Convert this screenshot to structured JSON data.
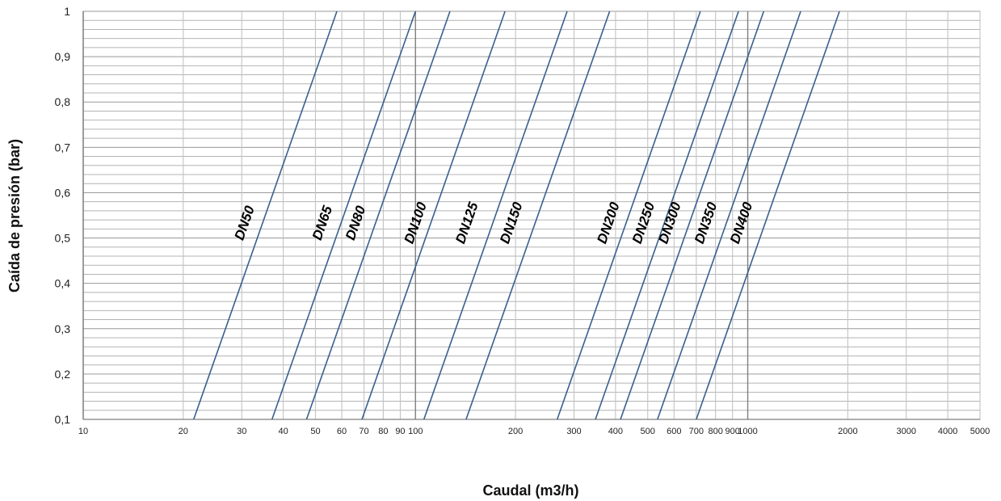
{
  "chart_data": {
    "type": "line",
    "title": "",
    "xlabel": "Caudal (m3/h)",
    "ylabel": "Caída de presión (bar)",
    "x_scale": "log",
    "xlim": [
      10,
      5000
    ],
    "ylim": [
      0.1,
      1
    ],
    "x_ticks": [
      10,
      20,
      30,
      40,
      50,
      60,
      70,
      80,
      90,
      100,
      200,
      300,
      400,
      500,
      600,
      700,
      800,
      900,
      1000,
      2000,
      3000,
      4000,
      5000
    ],
    "x_tick_labels": [
      "10",
      "20",
      "30",
      "40",
      "50",
      "60",
      "70",
      "80",
      "90",
      "100",
      "200",
      "300",
      "400",
      "500",
      "600",
      "700",
      "800",
      "900",
      "1000",
      "2000",
      "3000",
      "4000",
      "5000"
    ],
    "y_ticks": [
      0.1,
      0.2,
      0.3,
      0.4,
      0.5,
      0.6,
      0.7,
      0.8,
      0.9,
      1
    ],
    "y_tick_labels": [
      "0,1",
      "0,2",
      "0,3",
      "0,4",
      "0,5",
      "0,6",
      "0,7",
      "0,8",
      "0,9",
      "1"
    ],
    "y_minor_step": 0.02,
    "grid": true,
    "legend": "none (labels on lines)",
    "line_color": "#3a5f8f",
    "series": [
      {
        "name": "DN50",
        "points": [
          [
            21.5,
            0.1
          ],
          [
            58,
            1
          ]
        ],
        "label_at": [
          31.5,
          0.53
        ]
      },
      {
        "name": "DN65",
        "points": [
          [
            37,
            0.1
          ],
          [
            100,
            1
          ]
        ],
        "label_at": [
          54,
          0.53
        ]
      },
      {
        "name": "DN80",
        "points": [
          [
            47,
            0.1
          ],
          [
            127,
            1
          ]
        ],
        "label_at": [
          68,
          0.53
        ]
      },
      {
        "name": "DN100",
        "points": [
          [
            69,
            0.1
          ],
          [
            186,
            1
          ]
        ],
        "label_at": [
          103,
          0.53
        ]
      },
      {
        "name": "DN125",
        "points": [
          [
            106,
            0.1
          ],
          [
            286,
            1
          ]
        ],
        "label_at": [
          147,
          0.53
        ]
      },
      {
        "name": "DN150",
        "points": [
          [
            142,
            0.1
          ],
          [
            384,
            1
          ]
        ],
        "label_at": [
          200,
          0.53
        ]
      },
      {
        "name": "DN200",
        "points": [
          [
            267,
            0.1
          ],
          [
            720,
            1
          ]
        ],
        "label_at": [
          392,
          0.53
        ]
      },
      {
        "name": "DN250",
        "points": [
          [
            348,
            0.1
          ],
          [
            938,
            1
          ]
        ],
        "label_at": [
          500,
          0.53
        ]
      },
      {
        "name": "DN300",
        "points": [
          [
            414,
            0.1
          ],
          [
            1117,
            1
          ]
        ],
        "label_at": [
          600,
          0.53
        ]
      },
      {
        "name": "DN350",
        "points": [
          [
            535,
            0.1
          ],
          [
            1443,
            1
          ]
        ],
        "label_at": [
          770,
          0.53
        ]
      },
      {
        "name": "DN400",
        "points": [
          [
            700,
            0.1
          ],
          [
            1888,
            1
          ]
        ],
        "label_at": [
          985,
          0.53
        ]
      }
    ]
  }
}
